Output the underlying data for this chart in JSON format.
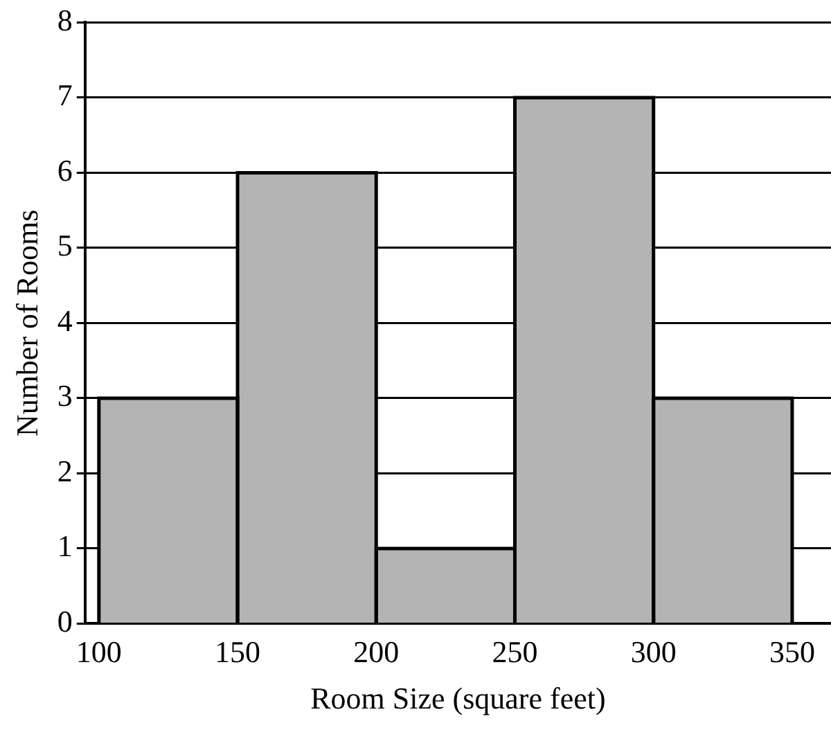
{
  "chart_data": {
    "type": "histogram",
    "xlabel": "Room Size (square feet)",
    "ylabel": "Number of Rooms",
    "bins": [
      100,
      150,
      200,
      250,
      300,
      350
    ],
    "values": [
      3,
      6,
      1,
      7,
      3
    ],
    "color": "#b4b4b4",
    "xlim": [
      95,
      364
    ],
    "xticks": [
      100,
      150,
      200,
      250,
      300,
      350
    ],
    "ylim": [
      0,
      8
    ],
    "yticks": [
      0,
      1,
      2,
      3,
      4,
      5,
      6,
      7,
      8
    ],
    "grid": "y"
  }
}
